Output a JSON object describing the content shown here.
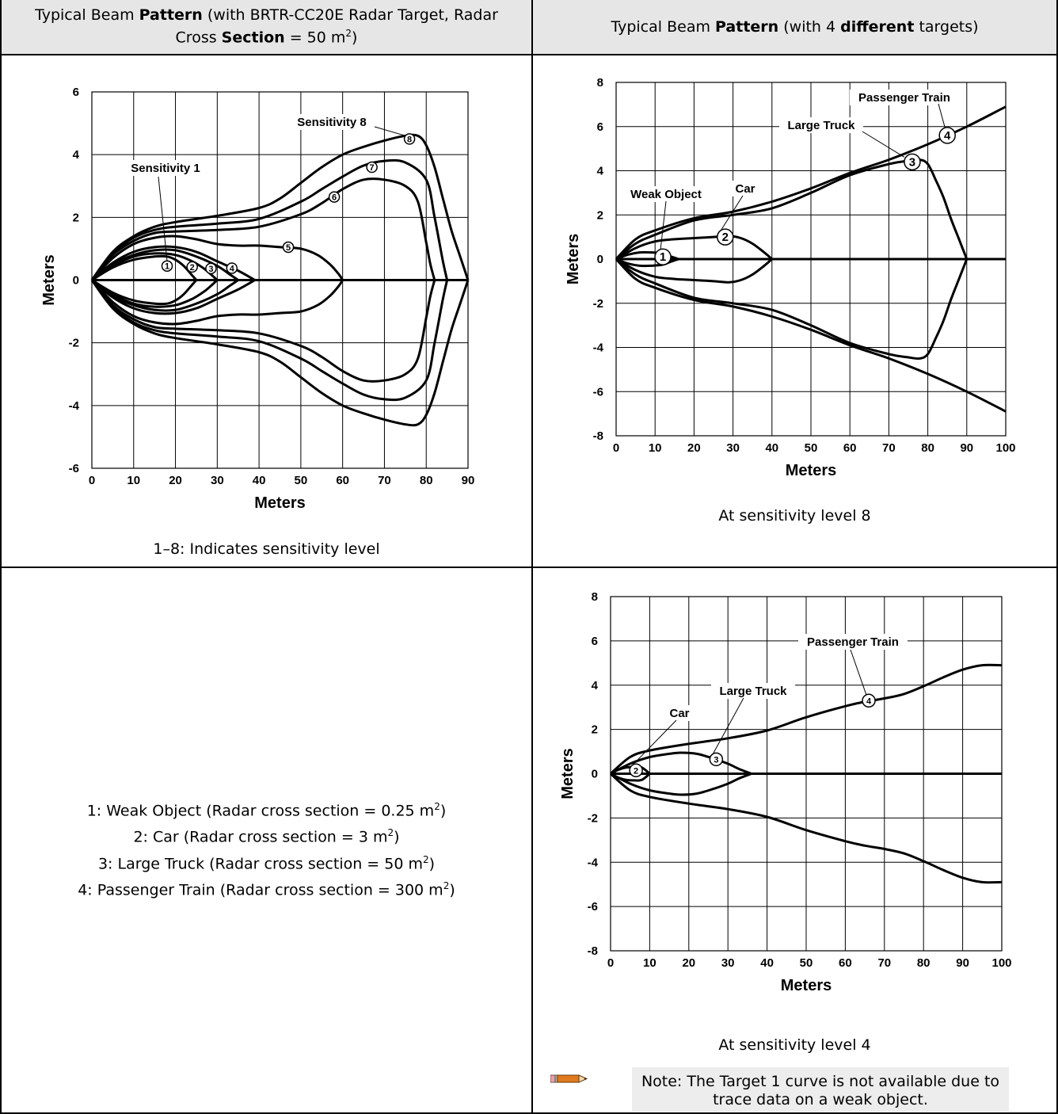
{
  "header": {
    "left": {
      "pre": "Typical Beam ",
      "b1": "Pattern",
      "mid": " (with BRTR-CC20E Radar Target, Radar Cross ",
      "b2": "Section",
      "post": " = 50 m",
      "sup": "2",
      "end": ")"
    },
    "right": {
      "pre": "Typical Beam ",
      "b1": "Pattern",
      "mid": " (with 4 ",
      "b2": "different",
      "post": " targets)"
    }
  },
  "captions": {
    "chart1": "1–8: Indicates sensitivity level",
    "chart2": "At sensitivity level 8",
    "chart3": "At sensitivity level 4"
  },
  "legend": [
    {
      "text": "1: Weak Object (Radar cross section = 0.25 m",
      "sup": "2",
      "end": ")"
    },
    {
      "text": "2: Car (Radar cross section = 3 m",
      "sup": "2",
      "end": ")"
    },
    {
      "text": "3: Large Truck (Radar cross section = 50 m",
      "sup": "2",
      "end": ")"
    },
    {
      "text": "4: Passenger Train (Radar cross section = 300 m",
      "sup": "2",
      "end": ")"
    }
  ],
  "note": "Note: The Target 1 curve is not available due to trace data on a weak object.",
  "icons": {
    "note": "pencil-icon"
  },
  "colors": {
    "header_bg": "#e6e6e6",
    "note_bg": "#ededed",
    "grid": "#000000",
    "curve": "#000000"
  },
  "chart_data": [
    {
      "type": "line",
      "xlabel": "Meters",
      "ylabel": "Meters",
      "xlim": [
        0,
        90
      ],
      "ylim": [
        -6,
        6
      ],
      "xticks": [
        0,
        10,
        20,
        30,
        40,
        50,
        60,
        70,
        80,
        90
      ],
      "yticks": [
        -6,
        -4,
        -2,
        0,
        2,
        4,
        6
      ],
      "grid": true,
      "annotations": [
        {
          "text": "Sensitivity 1",
          "points_to": "1"
        },
        {
          "text": "Sensitivity 8",
          "points_to": "8"
        }
      ],
      "series": [
        {
          "marker": "1",
          "marker_at": [
            18,
            0.45
          ],
          "x": [
            0,
            5,
            10,
            15,
            18,
            20,
            22,
            24,
            25
          ],
          "y": [
            0,
            0.4,
            0.65,
            0.75,
            0.75,
            0.65,
            0.45,
            0.15,
            0
          ]
        },
        {
          "marker": "2",
          "marker_at": [
            24,
            0.42
          ],
          "x": [
            0,
            5,
            10,
            15,
            20,
            24,
            27,
            29,
            30
          ],
          "y": [
            0,
            0.45,
            0.75,
            0.85,
            0.8,
            0.6,
            0.35,
            0.12,
            0
          ]
        },
        {
          "marker": "3",
          "marker_at": [
            28.5,
            0.37
          ],
          "x": [
            0,
            5,
            10,
            15,
            20,
            25,
            30,
            33,
            35
          ],
          "y": [
            0,
            0.5,
            0.8,
            0.95,
            0.95,
            0.75,
            0.45,
            0.18,
            0
          ]
        },
        {
          "marker": "4",
          "marker_at": [
            33.5,
            0.38
          ],
          "x": [
            0,
            5,
            10,
            15,
            20,
            25,
            30,
            35,
            39
          ],
          "y": [
            0,
            0.55,
            0.9,
            1.05,
            1.05,
            0.9,
            0.6,
            0.3,
            0
          ]
        },
        {
          "marker": "5",
          "marker_at": [
            47,
            1.05
          ],
          "x": [
            0,
            5,
            10,
            15,
            20,
            25,
            30,
            35,
            40,
            45,
            50,
            54,
            57,
            59,
            60
          ],
          "y": [
            0,
            0.7,
            1.15,
            1.35,
            1.4,
            1.3,
            1.15,
            1.1,
            1.1,
            1.05,
            1.0,
            0.8,
            0.5,
            0.2,
            0
          ]
        },
        {
          "marker": "6",
          "marker_at": [
            58,
            2.65
          ],
          "x": [
            0,
            5,
            10,
            15,
            20,
            30,
            40,
            50,
            55,
            60,
            65,
            70,
            75,
            78,
            80,
            81,
            82
          ],
          "y": [
            0,
            0.8,
            1.25,
            1.5,
            1.55,
            1.6,
            1.7,
            2.1,
            2.45,
            2.9,
            3.2,
            3.2,
            3.0,
            2.5,
            1.2,
            0.5,
            0
          ]
        },
        {
          "marker": "7",
          "marker_at": [
            67,
            3.6
          ],
          "x": [
            0,
            5,
            10,
            15,
            20,
            30,
            40,
            50,
            55,
            60,
            65,
            70,
            75,
            80,
            82,
            84,
            85
          ],
          "y": [
            0,
            0.85,
            1.35,
            1.6,
            1.7,
            1.8,
            1.95,
            2.5,
            2.9,
            3.3,
            3.65,
            3.8,
            3.75,
            3.2,
            2.0,
            0.6,
            0
          ]
        },
        {
          "marker": "8",
          "marker_at": [
            76,
            4.5
          ],
          "x": [
            0,
            5,
            10,
            15,
            20,
            30,
            40,
            45,
            50,
            55,
            60,
            65,
            70,
            75,
            78,
            80,
            82,
            84,
            86,
            88,
            90
          ],
          "y": [
            0,
            0.9,
            1.4,
            1.7,
            1.85,
            2.05,
            2.3,
            2.6,
            3.1,
            3.6,
            4.0,
            4.25,
            4.45,
            4.6,
            4.6,
            4.3,
            3.6,
            2.6,
            1.6,
            0.8,
            0
          ]
        }
      ]
    },
    {
      "type": "line",
      "xlabel": "Meters",
      "ylabel": "Meters",
      "xlim": [
        0,
        100
      ],
      "ylim": [
        -8,
        8
      ],
      "xticks": [
        0,
        10,
        20,
        30,
        40,
        50,
        60,
        70,
        80,
        90,
        100
      ],
      "yticks": [
        -8,
        -6,
        -4,
        -2,
        0,
        2,
        4,
        6,
        8
      ],
      "grid": true,
      "annotations": [
        {
          "text": "Weak Object",
          "points_to": "1"
        },
        {
          "text": "Car",
          "points_to": "2"
        },
        {
          "text": "Large Truck",
          "points_to": "3"
        },
        {
          "text": "Passenger Train",
          "points_to": "4"
        }
      ],
      "series": [
        {
          "marker": "1",
          "marker_at": [
            12,
            0.1
          ],
          "x": [
            0,
            3,
            6,
            9,
            12,
            14,
            16
          ],
          "y": [
            0,
            0.2,
            0.3,
            0.3,
            0.25,
            0.12,
            0
          ]
        },
        {
          "marker": "2",
          "marker_at": [
            28,
            1.0
          ],
          "x": [
            0,
            5,
            10,
            15,
            20,
            25,
            29,
            32,
            35,
            38,
            40
          ],
          "y": [
            0,
            0.5,
            0.8,
            0.9,
            0.95,
            1.0,
            1.05,
            0.95,
            0.7,
            0.3,
            0
          ]
        },
        {
          "marker": "3",
          "marker_at": [
            76,
            4.4
          ],
          "x": [
            0,
            5,
            10,
            20,
            30,
            40,
            50,
            60,
            70,
            75,
            78,
            80,
            82,
            84,
            86,
            88,
            90
          ],
          "y": [
            0,
            0.7,
            1.1,
            1.75,
            2.0,
            2.3,
            3.0,
            3.8,
            4.3,
            4.45,
            4.5,
            4.3,
            3.6,
            2.8,
            1.8,
            0.9,
            0
          ]
        },
        {
          "marker": "4",
          "marker_at": [
            85,
            5.6
          ],
          "x": [
            0,
            5,
            10,
            20,
            30,
            40,
            50,
            60,
            70,
            80,
            90,
            100
          ],
          "y": [
            0,
            0.9,
            1.3,
            1.85,
            2.15,
            2.6,
            3.2,
            3.9,
            4.5,
            5.2,
            6.0,
            6.9
          ]
        }
      ]
    },
    {
      "type": "line",
      "xlabel": "Meters",
      "ylabel": "Meters",
      "xlim": [
        0,
        100
      ],
      "ylim": [
        -8,
        8
      ],
      "xticks": [
        0,
        10,
        20,
        30,
        40,
        50,
        60,
        70,
        80,
        90,
        100
      ],
      "yticks": [
        -8,
        -6,
        -4,
        -2,
        0,
        2,
        4,
        6,
        8
      ],
      "grid": true,
      "annotations": [
        {
          "text": "Car",
          "points_to": "2"
        },
        {
          "text": "Large Truck",
          "points_to": "3"
        },
        {
          "text": "Passenger Train",
          "points_to": "4"
        }
      ],
      "series": [
        {
          "marker": "2",
          "marker_at": [
            6.5,
            0.15
          ],
          "x": [
            0,
            2,
            4,
            6,
            8,
            10
          ],
          "y": [
            0,
            0.18,
            0.28,
            0.3,
            0.28,
            0
          ]
        },
        {
          "marker": "3",
          "marker_at": [
            27,
            0.65
          ],
          "x": [
            0,
            5,
            10,
            15,
            18,
            22,
            26,
            30,
            33,
            36
          ],
          "y": [
            0,
            0.45,
            0.75,
            0.9,
            0.95,
            0.9,
            0.7,
            0.45,
            0.2,
            0
          ]
        },
        {
          "marker": "4",
          "marker_at": [
            66,
            3.3
          ],
          "x": [
            0,
            5,
            10,
            20,
            30,
            40,
            50,
            60,
            65,
            70,
            75,
            80,
            85,
            90,
            95,
            100
          ],
          "y": [
            0,
            0.75,
            1.05,
            1.35,
            1.6,
            1.95,
            2.55,
            3.05,
            3.25,
            3.4,
            3.6,
            3.95,
            4.35,
            4.7,
            4.9,
            4.9
          ]
        }
      ]
    }
  ]
}
